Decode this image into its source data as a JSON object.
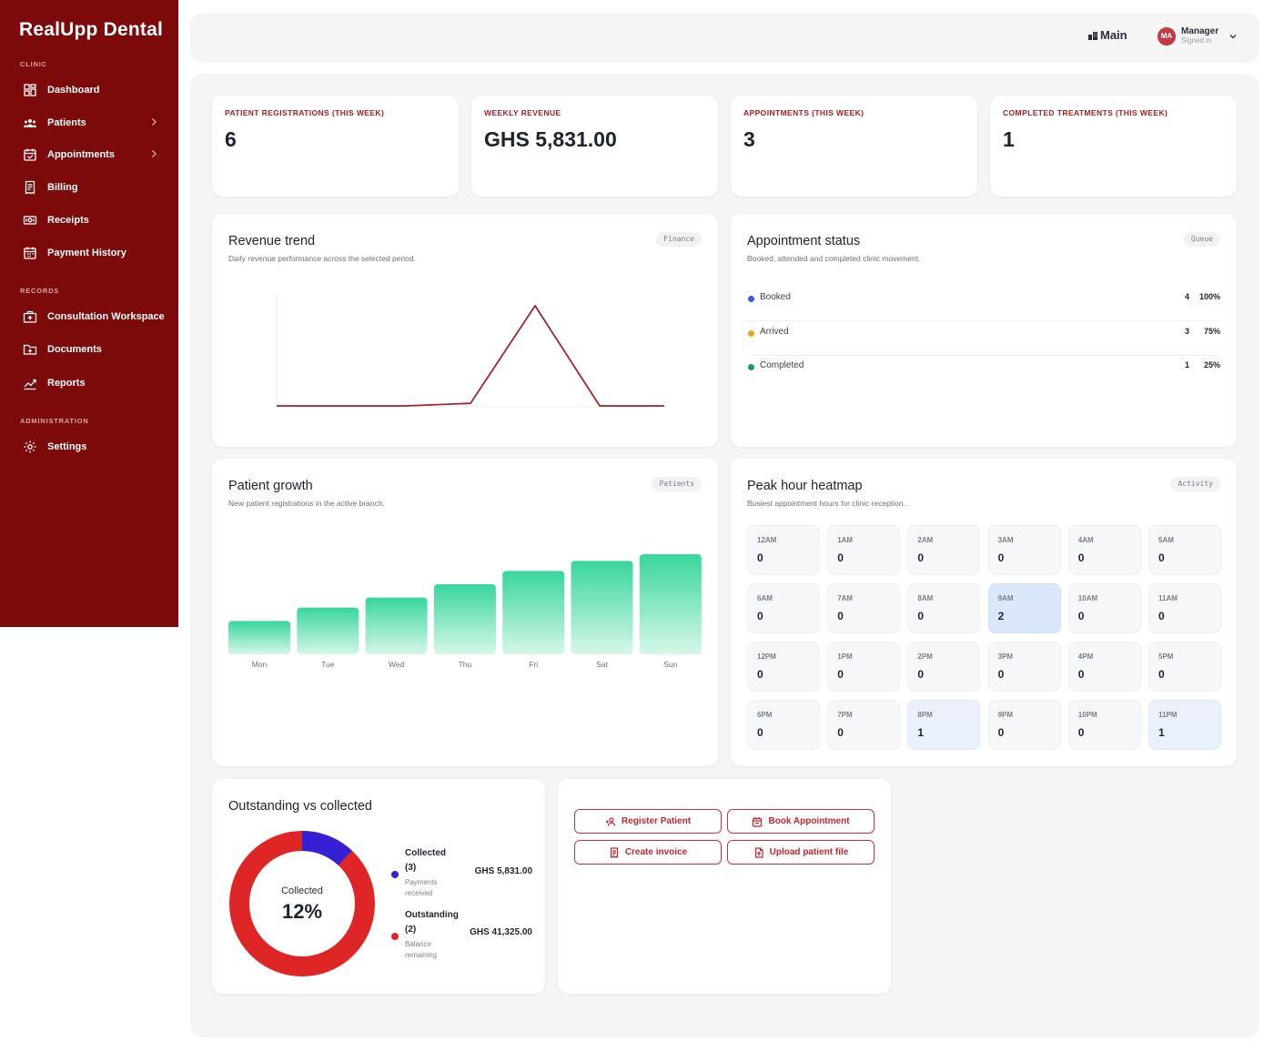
{
  "sidebar": {
    "brand": "RealUpp Dental",
    "sections": {
      "clinic": "CLINIC",
      "records": "RECORDS",
      "administration": "ADMINISTRATION"
    },
    "items": {
      "dashboard": "Dashboard",
      "patients": "Patients",
      "appointments": "Appointments",
      "billing": "Billing",
      "receipts": "Receipts",
      "payment_history": "Payment History",
      "consultation": "Consultation Workspace",
      "documents": "Documents",
      "reports": "Reports",
      "settings": "Settings"
    }
  },
  "topbar": {
    "branch": "Main",
    "user": {
      "initials": "MA",
      "name": "Manager",
      "status": "Signed in"
    }
  },
  "kpis": [
    {
      "label": "PATIENT REGISTRATIONS (THIS WEEK)",
      "value": "6"
    },
    {
      "label": "WEEKLY REVENUE",
      "value": "GHS 5,831.00"
    },
    {
      "label": "APPOINTMENTS (THIS WEEK)",
      "value": "3"
    },
    {
      "label": "COMPLETED TREATMENTS (THIS WEEK)",
      "value": "1"
    }
  ],
  "revenue": {
    "title": "Revenue trend",
    "subtitle": "Daily revenue performance across the selected period.",
    "tag": "Finance",
    "chart_data": {
      "type": "line",
      "values": [
        0,
        0,
        0,
        150,
        5831,
        0,
        0
      ],
      "color": "#a3262a"
    }
  },
  "status": {
    "title": "Appointment status",
    "subtitle": "Booked, attended and completed clinic movement.",
    "tag": "Queue",
    "rows": [
      {
        "label": "Booked",
        "count": "4",
        "pct": "100%",
        "color": "#3b5bdb"
      },
      {
        "label": "Arrived",
        "count": "3",
        "pct": "75%",
        "color": "#f0a31a"
      },
      {
        "label": "Completed",
        "count": "1",
        "pct": "25%",
        "color": "#1f9d55"
      }
    ]
  },
  "growth": {
    "title": "Patient growth",
    "subtitle": "New patient registrations in the active branch.",
    "tag": "Patients",
    "chart_data": {
      "type": "bar",
      "categories": [
        "Mon",
        "Tue",
        "Wed",
        "Thu",
        "Fri",
        "Sat",
        "Sun"
      ],
      "values": [
        1.0,
        1.4,
        1.7,
        2.1,
        2.5,
        2.8,
        3.0
      ]
    }
  },
  "heatmap": {
    "title": "Peak hour heatmap",
    "subtitle": "Busiest appointment hours for clinic reception.",
    "tag": "Activity",
    "cells": [
      {
        "hour": "12AM",
        "count": "0"
      },
      {
        "hour": "1AM",
        "count": "0"
      },
      {
        "hour": "2AM",
        "count": "0"
      },
      {
        "hour": "3AM",
        "count": "0"
      },
      {
        "hour": "4AM",
        "count": "0"
      },
      {
        "hour": "5AM",
        "count": "0"
      },
      {
        "hour": "6AM",
        "count": "0"
      },
      {
        "hour": "7AM",
        "count": "0"
      },
      {
        "hour": "8AM",
        "count": "0"
      },
      {
        "hour": "9AM",
        "count": "2"
      },
      {
        "hour": "10AM",
        "count": "0"
      },
      {
        "hour": "11AM",
        "count": "0"
      },
      {
        "hour": "12PM",
        "count": "0"
      },
      {
        "hour": "1PM",
        "count": "0"
      },
      {
        "hour": "2PM",
        "count": "0"
      },
      {
        "hour": "3PM",
        "count": "0"
      },
      {
        "hour": "4PM",
        "count": "0"
      },
      {
        "hour": "5PM",
        "count": "0"
      },
      {
        "hour": "6PM",
        "count": "0"
      },
      {
        "hour": "7PM",
        "count": "0"
      },
      {
        "hour": "8PM",
        "count": "1"
      },
      {
        "hour": "9PM",
        "count": "0"
      },
      {
        "hour": "10PM",
        "count": "0"
      },
      {
        "hour": "11PM",
        "count": "1"
      }
    ]
  },
  "outstanding": {
    "title": "Outstanding vs collected",
    "center_label": "Collected",
    "center_value": "12%",
    "collected_fraction": 0.12,
    "collected": {
      "name": "Collected",
      "count": "(3)",
      "sub": "Payments received",
      "amount": "GHS 5,831.00",
      "color": "#3520d6"
    },
    "outstanding": {
      "name": "Outstanding",
      "count": "(2)",
      "sub": "Balance remaining",
      "amount": "GHS 41,325.00",
      "color": "#de2626"
    }
  },
  "actions": {
    "register": "Register Patient",
    "book": "Book Appointment",
    "invoice": "Create invoice",
    "upload": "Upload patient file"
  }
}
